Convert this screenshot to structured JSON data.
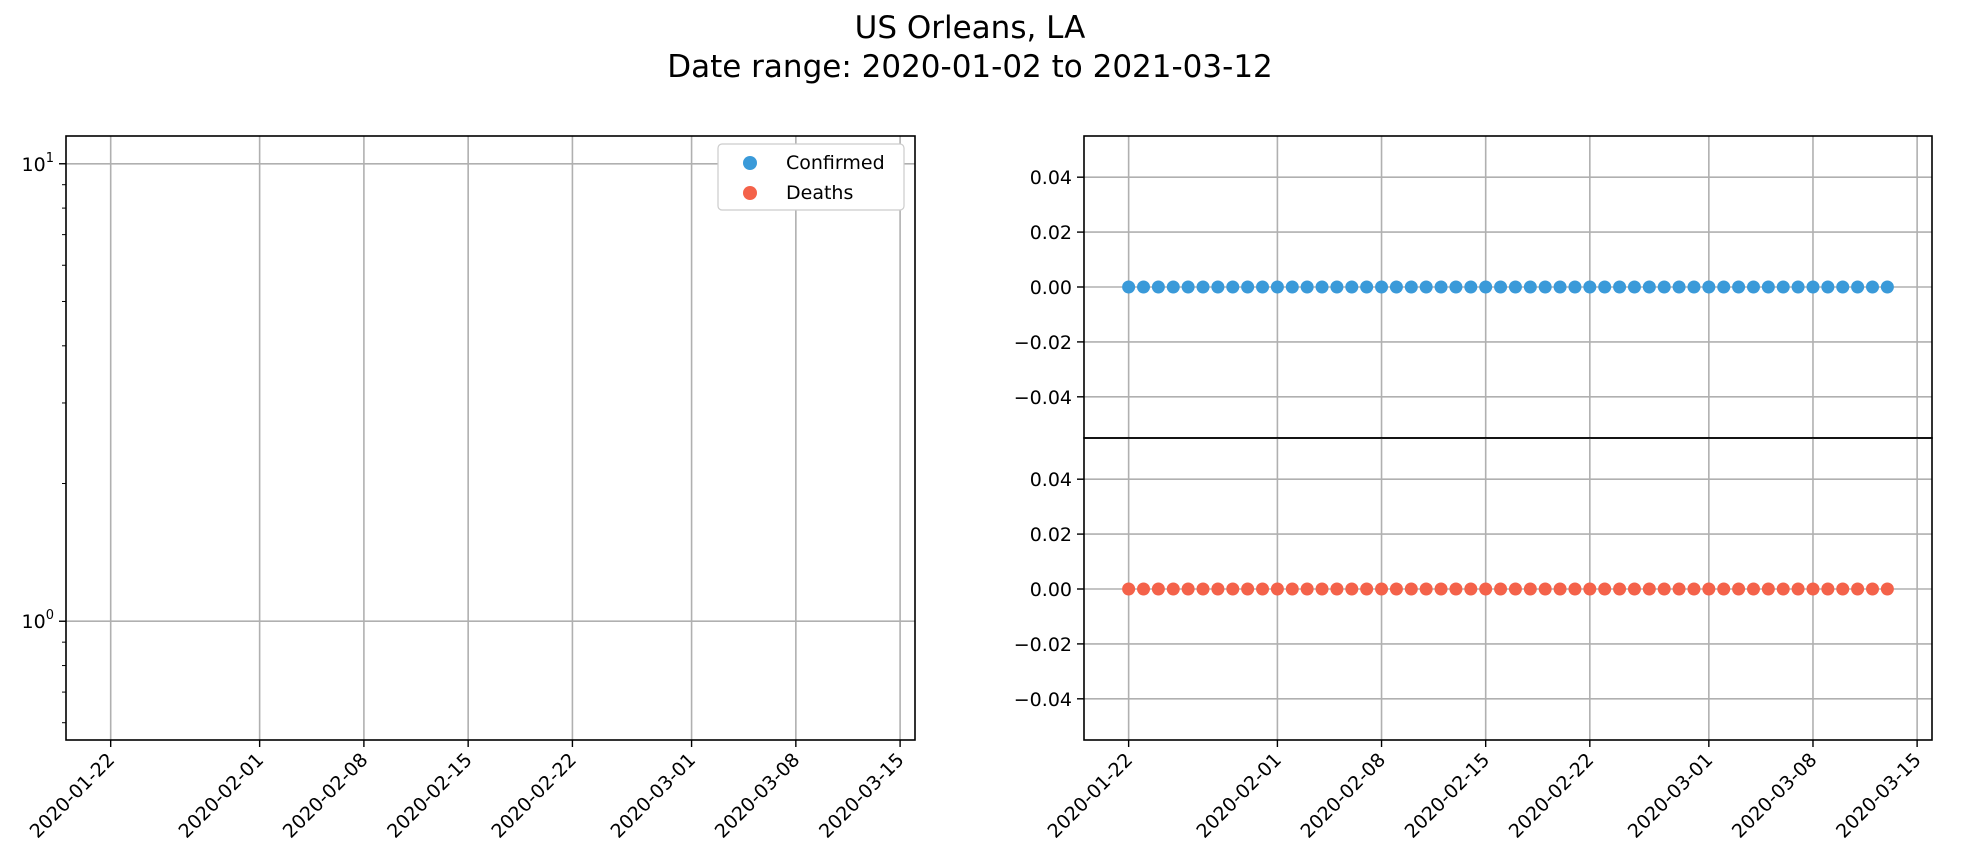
{
  "figure": {
    "title_line1": "US Orleans, LA",
    "title_line2": "Date range: 2020-01-02 to 2021-03-12"
  },
  "chart_data": [
    {
      "type": "scatter",
      "panel": "left",
      "yscale": "log",
      "grid": true,
      "legend": {
        "placement": "top-right",
        "entries": [
          {
            "label": "Confirmed",
            "color": "#3a9ad9"
          },
          {
            "label": "Deaths",
            "color": "#f4624a"
          }
        ]
      },
      "x_ticks": [
        "2020-01-22",
        "2020-02-01",
        "2020-02-08",
        "2020-02-15",
        "2020-02-22",
        "2020-03-01",
        "2020-03-08",
        "2020-03-15"
      ],
      "xlim": [
        "2020-01-19",
        "2020-03-16"
      ],
      "y_ticks": [
        {
          "value": 1,
          "label": "10",
          "exp": "0"
        },
        {
          "value": 10,
          "label": "10",
          "exp": "1"
        }
      ],
      "ylim": [
        0.55,
        11.5
      ],
      "series": [
        {
          "name": "Confirmed",
          "color": "#3a9ad9",
          "points": []
        },
        {
          "name": "Deaths",
          "color": "#f4624a",
          "points": []
        }
      ]
    },
    {
      "type": "scatter",
      "panel": "right-top",
      "grid": true,
      "y_ticks": [
        0.04,
        0.02,
        0.0,
        -0.02,
        -0.04
      ],
      "y_tick_labels": [
        "0.04",
        "0.02",
        "0.00",
        "−0.02",
        "−0.04"
      ],
      "ylim": [
        -0.055,
        0.055
      ],
      "xlim": [
        "2020-01-19",
        "2020-03-16"
      ],
      "series": [
        {
          "name": "Confirmed",
          "color": "#3a9ad9",
          "x_start": "2020-01-22",
          "x_end": "2020-03-13",
          "value": 0
        }
      ]
    },
    {
      "type": "scatter",
      "panel": "right-bottom",
      "grid": true,
      "y_ticks": [
        0.04,
        0.02,
        0.0,
        -0.02,
        -0.04
      ],
      "y_tick_labels": [
        "0.04",
        "0.02",
        "0.00",
        "−0.02",
        "−0.04"
      ],
      "ylim": [
        -0.055,
        0.055
      ],
      "xlim": [
        "2020-01-19",
        "2020-03-16"
      ],
      "x_ticks": [
        "2020-01-22",
        "2020-02-01",
        "2020-02-08",
        "2020-02-15",
        "2020-02-22",
        "2020-03-01",
        "2020-03-08",
        "2020-03-15"
      ],
      "series": [
        {
          "name": "Deaths",
          "color": "#f4624a",
          "x_start": "2020-01-22",
          "x_end": "2020-03-13",
          "value": 0
        }
      ]
    }
  ]
}
